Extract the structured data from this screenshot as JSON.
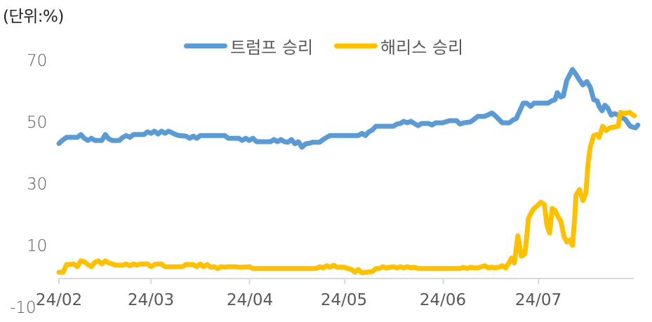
{
  "unit_label": "(단위:%)",
  "legend": [
    {
      "label": "트럼프 승리",
      "color": "#5B9BD5"
    },
    {
      "label": "해리스 승리",
      "color": "#FFC000"
    }
  ],
  "chart_data": {
    "type": "line",
    "title": "",
    "unit": "%",
    "xlabel": "",
    "ylabel": "",
    "ylim": [
      -10,
      70
    ],
    "y_ticks": [
      "70",
      "50",
      "30",
      "10",
      "-10"
    ],
    "x_ticks": [
      "24/02",
      "24/03",
      "24/04",
      "24/05",
      "24/06",
      "24/07"
    ],
    "x_tick_days": [
      0,
      29,
      60,
      90,
      121,
      151
    ],
    "x_range_days": [
      0,
      181
    ],
    "grid": false,
    "legend_position": "top",
    "x_note": "x is days since 2024-02-01",
    "series": [
      {
        "name": "트럼프 승리",
        "color": "#5B9BD5",
        "points": [
          [
            0,
            43.5
          ],
          [
            1,
            44.5
          ],
          [
            2.4,
            45.5
          ],
          [
            5.8,
            45.5
          ],
          [
            6.9,
            46.4
          ],
          [
            8,
            45.2
          ],
          [
            9.1,
            44.5
          ],
          [
            10.2,
            45.2
          ],
          [
            11.3,
            44.5
          ],
          [
            13.5,
            44.5
          ],
          [
            14.6,
            46.4
          ],
          [
            15.7,
            45
          ],
          [
            16.8,
            44.5
          ],
          [
            19,
            44.5
          ],
          [
            20.1,
            45.5
          ],
          [
            21.2,
            46.1
          ],
          [
            22.3,
            45.5
          ],
          [
            23.5,
            46.4
          ],
          [
            26.8,
            46.4
          ],
          [
            27.9,
            47.3
          ],
          [
            29,
            46.8
          ],
          [
            30.1,
            47.5
          ],
          [
            31.2,
            46.6
          ],
          [
            32.3,
            47.5
          ],
          [
            33.4,
            46.8
          ],
          [
            34.5,
            47.5
          ],
          [
            35.6,
            47
          ],
          [
            36.7,
            46.4
          ],
          [
            37.8,
            46.1
          ],
          [
            40,
            45.9
          ],
          [
            41.2,
            45.2
          ],
          [
            42.3,
            45.9
          ],
          [
            43.4,
            45.2
          ],
          [
            44.5,
            46.1
          ],
          [
            52.2,
            46.1
          ],
          [
            53.3,
            45.2
          ],
          [
            56.6,
            45.2
          ],
          [
            57.7,
            44.5
          ],
          [
            58.8,
            45.2
          ],
          [
            59.9,
            44.5
          ],
          [
            61.1,
            45.2
          ],
          [
            62.2,
            44.1
          ],
          [
            66.6,
            44.1
          ],
          [
            67.7,
            44.8
          ],
          [
            68.8,
            44.1
          ],
          [
            69.9,
            44.8
          ],
          [
            71,
            44.1
          ],
          [
            72.1,
            43.9
          ],
          [
            73.2,
            44.8
          ],
          [
            74.3,
            43.4
          ],
          [
            75.4,
            44.1
          ],
          [
            76.5,
            42.3
          ],
          [
            77.7,
            43.4
          ],
          [
            78.8,
            43.6
          ],
          [
            79.9,
            43.9
          ],
          [
            82.1,
            43.9
          ],
          [
            83.2,
            44.8
          ],
          [
            84.3,
            45.5
          ],
          [
            85.4,
            46.1
          ],
          [
            94.2,
            46.1
          ],
          [
            95.4,
            46.8
          ],
          [
            96.5,
            46.1
          ],
          [
            97.6,
            47.3
          ],
          [
            98.7,
            47.9
          ],
          [
            99.8,
            49.1
          ],
          [
            105.3,
            49.1
          ],
          [
            106.4,
            49.8
          ],
          [
            107.5,
            50
          ],
          [
            108.6,
            50.7
          ],
          [
            109.7,
            50.2
          ],
          [
            110.8,
            50.7
          ],
          [
            111.9,
            50
          ],
          [
            113.1,
            49.3
          ],
          [
            114.2,
            50
          ],
          [
            116.4,
            50
          ],
          [
            117.5,
            49.5
          ],
          [
            118.6,
            50.2
          ],
          [
            120.8,
            50.2
          ],
          [
            123,
            50.9
          ],
          [
            125.2,
            50.9
          ],
          [
            126.3,
            49.8
          ],
          [
            127.4,
            50.2
          ],
          [
            129.6,
            50.5
          ],
          [
            130.8,
            51.4
          ],
          [
            131.9,
            52.3
          ],
          [
            134.1,
            52.3
          ],
          [
            136.3,
            53.4
          ],
          [
            137.4,
            52.5
          ],
          [
            139.6,
            50.2
          ],
          [
            141.8,
            50.2
          ],
          [
            142.9,
            51.1
          ],
          [
            144,
            51.6
          ],
          [
            145.1,
            54.1
          ],
          [
            146.2,
            56.6
          ],
          [
            147.3,
            56.6
          ],
          [
            148.5,
            55.5
          ],
          [
            149.6,
            56.6
          ],
          [
            154,
            56.6
          ],
          [
            155.1,
            57.3
          ],
          [
            156.2,
            57.7
          ],
          [
            156.9,
            60
          ],
          [
            158,
            58.6
          ],
          [
            158.8,
            58.9
          ],
          [
            159.9,
            63.9
          ],
          [
            161.7,
            67.5
          ],
          [
            162.8,
            65.9
          ],
          [
            163.9,
            64.1
          ],
          [
            165,
            62.5
          ],
          [
            166.2,
            63.6
          ],
          [
            167.3,
            61.8
          ],
          [
            168.4,
            57.7
          ],
          [
            169.5,
            57.3
          ],
          [
            170.1,
            55.5
          ],
          [
            171,
            54.1
          ],
          [
            171.9,
            55.9
          ],
          [
            172.8,
            55
          ],
          [
            173.9,
            52.7
          ],
          [
            175,
            53.2
          ],
          [
            176.1,
            52.7
          ],
          [
            177.2,
            51.8
          ],
          [
            178.3,
            51.4
          ],
          [
            179.9,
            49.1
          ],
          [
            181.6,
            48.6
          ],
          [
            182.3,
            49.5
          ]
        ]
      },
      {
        "name": "해리스 승리",
        "color": "#FFC000",
        "points": [
          [
            0,
            1.8
          ],
          [
            1.3,
            1.8
          ],
          [
            2.4,
            4.3
          ],
          [
            3.5,
            4.3
          ],
          [
            4.6,
            4.5
          ],
          [
            5.8,
            3.6
          ],
          [
            6.9,
            5.5
          ],
          [
            8,
            5.2
          ],
          [
            9.1,
            4.3
          ],
          [
            10.2,
            3.6
          ],
          [
            11.3,
            5
          ],
          [
            12.4,
            5.5
          ],
          [
            13.5,
            4.5
          ],
          [
            14.6,
            5.5
          ],
          [
            15.7,
            4.8
          ],
          [
            16.8,
            4.5
          ],
          [
            17.9,
            4.1
          ],
          [
            20.1,
            4.1
          ],
          [
            21.2,
            4.5
          ],
          [
            22.3,
            3.9
          ],
          [
            23.5,
            4.5
          ],
          [
            24.6,
            4.1
          ],
          [
            25.7,
            4.5
          ],
          [
            27.9,
            4.5
          ],
          [
            29,
            3.6
          ],
          [
            30.1,
            4.3
          ],
          [
            31.2,
            4.5
          ],
          [
            32.3,
            4.5
          ],
          [
            33.4,
            3.6
          ],
          [
            38.9,
            3.6
          ],
          [
            40,
            4.3
          ],
          [
            42.3,
            4.3
          ],
          [
            43.4,
            3.6
          ],
          [
            44.5,
            4.5
          ],
          [
            45.6,
            3.6
          ],
          [
            46.7,
            4.3
          ],
          [
            47.8,
            3.4
          ],
          [
            48.9,
            3.6
          ],
          [
            50,
            3
          ],
          [
            51.1,
            3.6
          ],
          [
            52.2,
            3.4
          ],
          [
            53.3,
            3.6
          ],
          [
            55.5,
            3.6
          ],
          [
            56.6,
            3.4
          ],
          [
            57.7,
            3.4
          ],
          [
            59.9,
            3.6
          ],
          [
            61.1,
            3
          ],
          [
            80.9,
            3
          ],
          [
            82.1,
            3.6
          ],
          [
            83.2,
            3.2
          ],
          [
            84.3,
            3.9
          ],
          [
            85.4,
            3.4
          ],
          [
            86.5,
            4.1
          ],
          [
            87.6,
            3.4
          ],
          [
            89.8,
            3.4
          ],
          [
            91,
            3
          ],
          [
            92.1,
            2.7
          ],
          [
            93.2,
            1.8
          ],
          [
            94.2,
            2.7
          ],
          [
            95.4,
            1.6
          ],
          [
            96.5,
            1.8
          ],
          [
            98.7,
            2
          ],
          [
            99.8,
            3
          ],
          [
            100.9,
            3
          ],
          [
            102,
            3.6
          ],
          [
            103.1,
            3.2
          ],
          [
            104.2,
            3.4
          ],
          [
            105.3,
            3.6
          ],
          [
            106.4,
            3.2
          ],
          [
            107.5,
            3.6
          ],
          [
            108.6,
            3.2
          ],
          [
            109.7,
            3.6
          ],
          [
            110.8,
            3.2
          ],
          [
            111.9,
            3.4
          ],
          [
            113.1,
            3
          ],
          [
            126.3,
            3
          ],
          [
            127.4,
            3.4
          ],
          [
            128.5,
            3
          ],
          [
            129.6,
            3.4
          ],
          [
            130.8,
            3.2
          ],
          [
            131.9,
            3.2
          ],
          [
            134.1,
            3.9
          ],
          [
            135.2,
            3.2
          ],
          [
            136.3,
            3.4
          ],
          [
            137.4,
            3.2
          ],
          [
            138.5,
            3.4
          ],
          [
            139.6,
            3.9
          ],
          [
            140.7,
            3.2
          ],
          [
            141.8,
            5
          ],
          [
            142.5,
            6.4
          ],
          [
            143.4,
            4.8
          ],
          [
            144.5,
            13.6
          ],
          [
            145.1,
            10
          ],
          [
            145.6,
            7
          ],
          [
            146.2,
            7.3
          ],
          [
            146.7,
            7.7
          ],
          [
            147.3,
            13.2
          ],
          [
            147.8,
            19.1
          ],
          [
            148.5,
            20.7
          ],
          [
            149.6,
            22.5
          ],
          [
            150.7,
            23.4
          ],
          [
            151.8,
            24.5
          ],
          [
            152.9,
            23.6
          ],
          [
            153.6,
            17.3
          ],
          [
            154.5,
            14.5
          ],
          [
            155.3,
            22.5
          ],
          [
            156.2,
            21.8
          ],
          [
            157.3,
            19.5
          ],
          [
            158,
            18.4
          ],
          [
            159.1,
            13.2
          ],
          [
            160,
            11.6
          ],
          [
            161.1,
            12.3
          ],
          [
            161.7,
            10.5
          ],
          [
            162.4,
            19.5
          ],
          [
            162.8,
            26.8
          ],
          [
            163.9,
            28.6
          ],
          [
            165,
            25
          ],
          [
            165.9,
            27.3
          ],
          [
            166.6,
            37
          ],
          [
            167.3,
            42.3
          ],
          [
            168.4,
            46.1
          ],
          [
            169.5,
            46.4
          ],
          [
            170.1,
            45.5
          ],
          [
            171.2,
            49.1
          ],
          [
            172.3,
            47.7
          ],
          [
            173.5,
            48.6
          ],
          [
            175,
            48.9
          ],
          [
            176.1,
            49.1
          ],
          [
            176.8,
            53.6
          ],
          [
            178.3,
            53.2
          ],
          [
            179.6,
            53.6
          ],
          [
            180.5,
            52.9
          ],
          [
            181.2,
            52.5
          ]
        ]
      }
    ]
  }
}
